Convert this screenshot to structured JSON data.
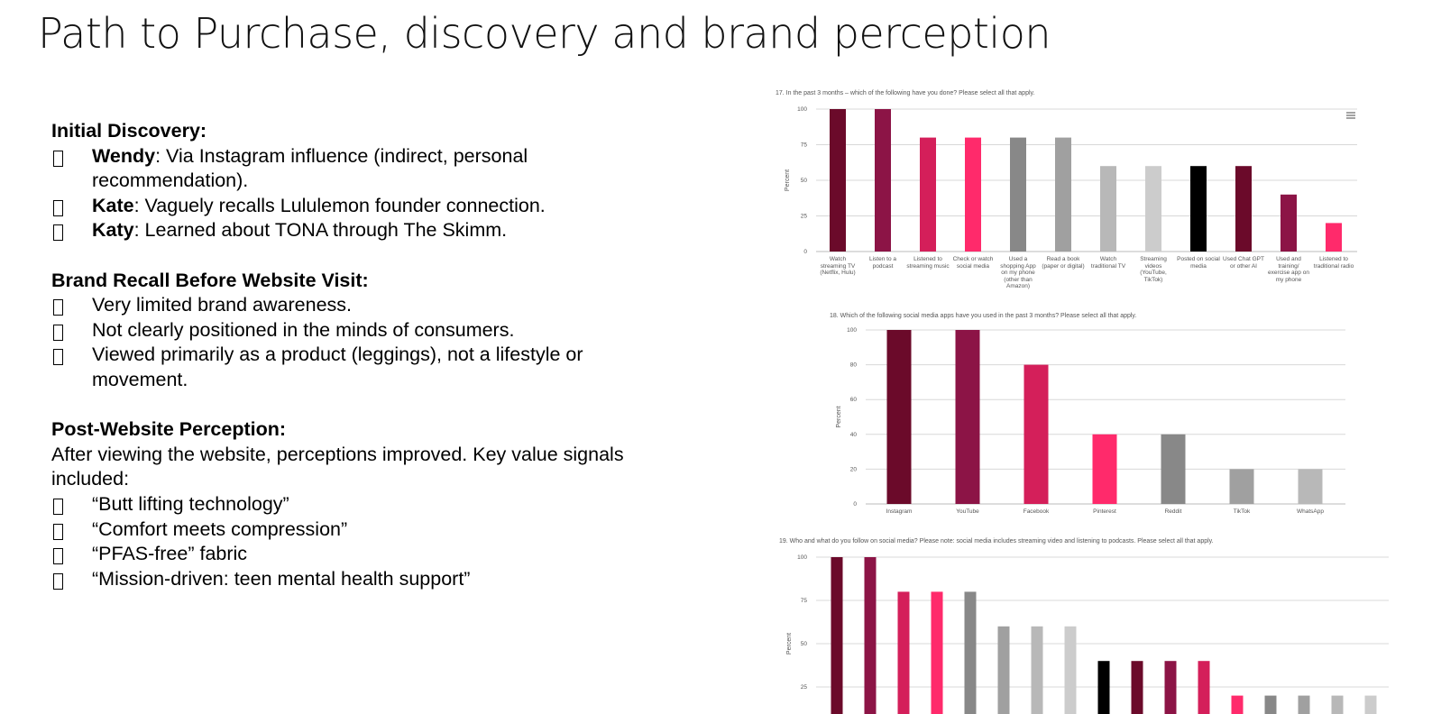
{
  "title": "Path to Purchase, discovery and brand perception",
  "sections": [
    {
      "heading": "Initial Discovery:",
      "items": [
        {
          "name": "Wendy",
          "text": ": Via Instagram influence (indirect, personal recommendation)."
        },
        {
          "name": "Kate",
          "text": ": Vaguely recalls Lululemon founder connection."
        },
        {
          "name": "Katy",
          "text": ": Learned about TONA through The Skimm."
        }
      ]
    },
    {
      "heading": "Brand Recall Before Website Visit:",
      "items": [
        {
          "text": "Very limited brand awareness."
        },
        {
          "text": "Not clearly positioned in the minds of consumers."
        },
        {
          "text": "Viewed primarily as a product (leggings), not a lifestyle or movement."
        }
      ]
    },
    {
      "heading": "Post-Website Perception:",
      "paragraph": "After viewing the website, perceptions improved. Key value signals included:",
      "items": [
        {
          "text": "“Butt lifting technology”"
        },
        {
          "text": "“Comfort meets compression”"
        },
        {
          "text": "“PFAS-free” fabric"
        },
        {
          "text": "“Mission-driven: teen mental health support”"
        }
      ]
    }
  ],
  "chart_data": [
    {
      "type": "bar",
      "title": "17. In the past 3 months – which of the following have you done? Please select all that apply.",
      "y_label": "Percent",
      "categories": [
        "Watch streaming TV (Netflix, Hulu)",
        "Listen to a podcast",
        "Listened to streaming music",
        "Check or watch social media",
        "Used a shopping App on my phone (other than Amazon)",
        "Read a book (paper or digital)",
        "Watch traditional TV",
        "Streaming videos (YouTube, TikTok)",
        "Posted on social media",
        "Used Chat GPT or other AI",
        "Used and training/ exercise app on my phone",
        "Listened to traditional radio"
      ],
      "values": [
        100,
        100,
        80,
        80,
        80,
        80,
        60,
        60,
        60,
        60,
        40,
        20
      ],
      "colors": [
        "#6b0a2a",
        "#8c1446",
        "#d41f5a",
        "#ff2a6b",
        "#888888",
        "#a0a0a0",
        "#b8b8b8",
        "#cccccc",
        "#000000",
        "#6b0a2a",
        "#8c1446",
        "#ff2a6b"
      ],
      "ylim": [
        0,
        100
      ],
      "yticks": [
        0,
        25,
        50,
        75,
        100
      ],
      "grid": true
    },
    {
      "type": "bar",
      "title": "18. Which of the following social media apps have you used in the past 3 months? Please select all that apply.",
      "y_label": "Percent",
      "categories": [
        "Instagram",
        "YouTube",
        "Facebook",
        "Pinterest",
        "Reddit",
        "TikTok",
        "WhatsApp"
      ],
      "values": [
        100,
        100,
        80,
        40,
        40,
        20,
        20
      ],
      "colors": [
        "#6b0a2a",
        "#8c1446",
        "#d41f5a",
        "#ff2a6b",
        "#888888",
        "#a0a0a0",
        "#b8b8b8"
      ],
      "ylim": [
        0,
        100
      ],
      "yticks": [
        0,
        20,
        40,
        60,
        80,
        100
      ],
      "grid": true
    },
    {
      "type": "bar",
      "title": "19. Who and what do you follow on social media? Please note: social media includes streaming video and listening to podcasts. Please select all that apply.",
      "y_label": "Percent",
      "values": [
        100,
        100,
        80,
        80,
        80,
        60,
        60,
        60,
        40,
        40,
        40,
        40,
        20,
        20,
        20,
        20,
        20
      ],
      "colors": [
        "#6b0a2a",
        "#8c1446",
        "#d41f5a",
        "#ff2a6b",
        "#888888",
        "#a0a0a0",
        "#b8b8b8",
        "#cccccc",
        "#000000",
        "#6b0a2a",
        "#8c1446",
        "#d41f5a",
        "#ff2a6b",
        "#888888",
        "#a0a0a0",
        "#b8b8b8",
        "#cccccc"
      ],
      "ylim": [
        0,
        100
      ],
      "yticks": [
        25,
        50,
        75,
        100
      ],
      "grid": true
    }
  ]
}
